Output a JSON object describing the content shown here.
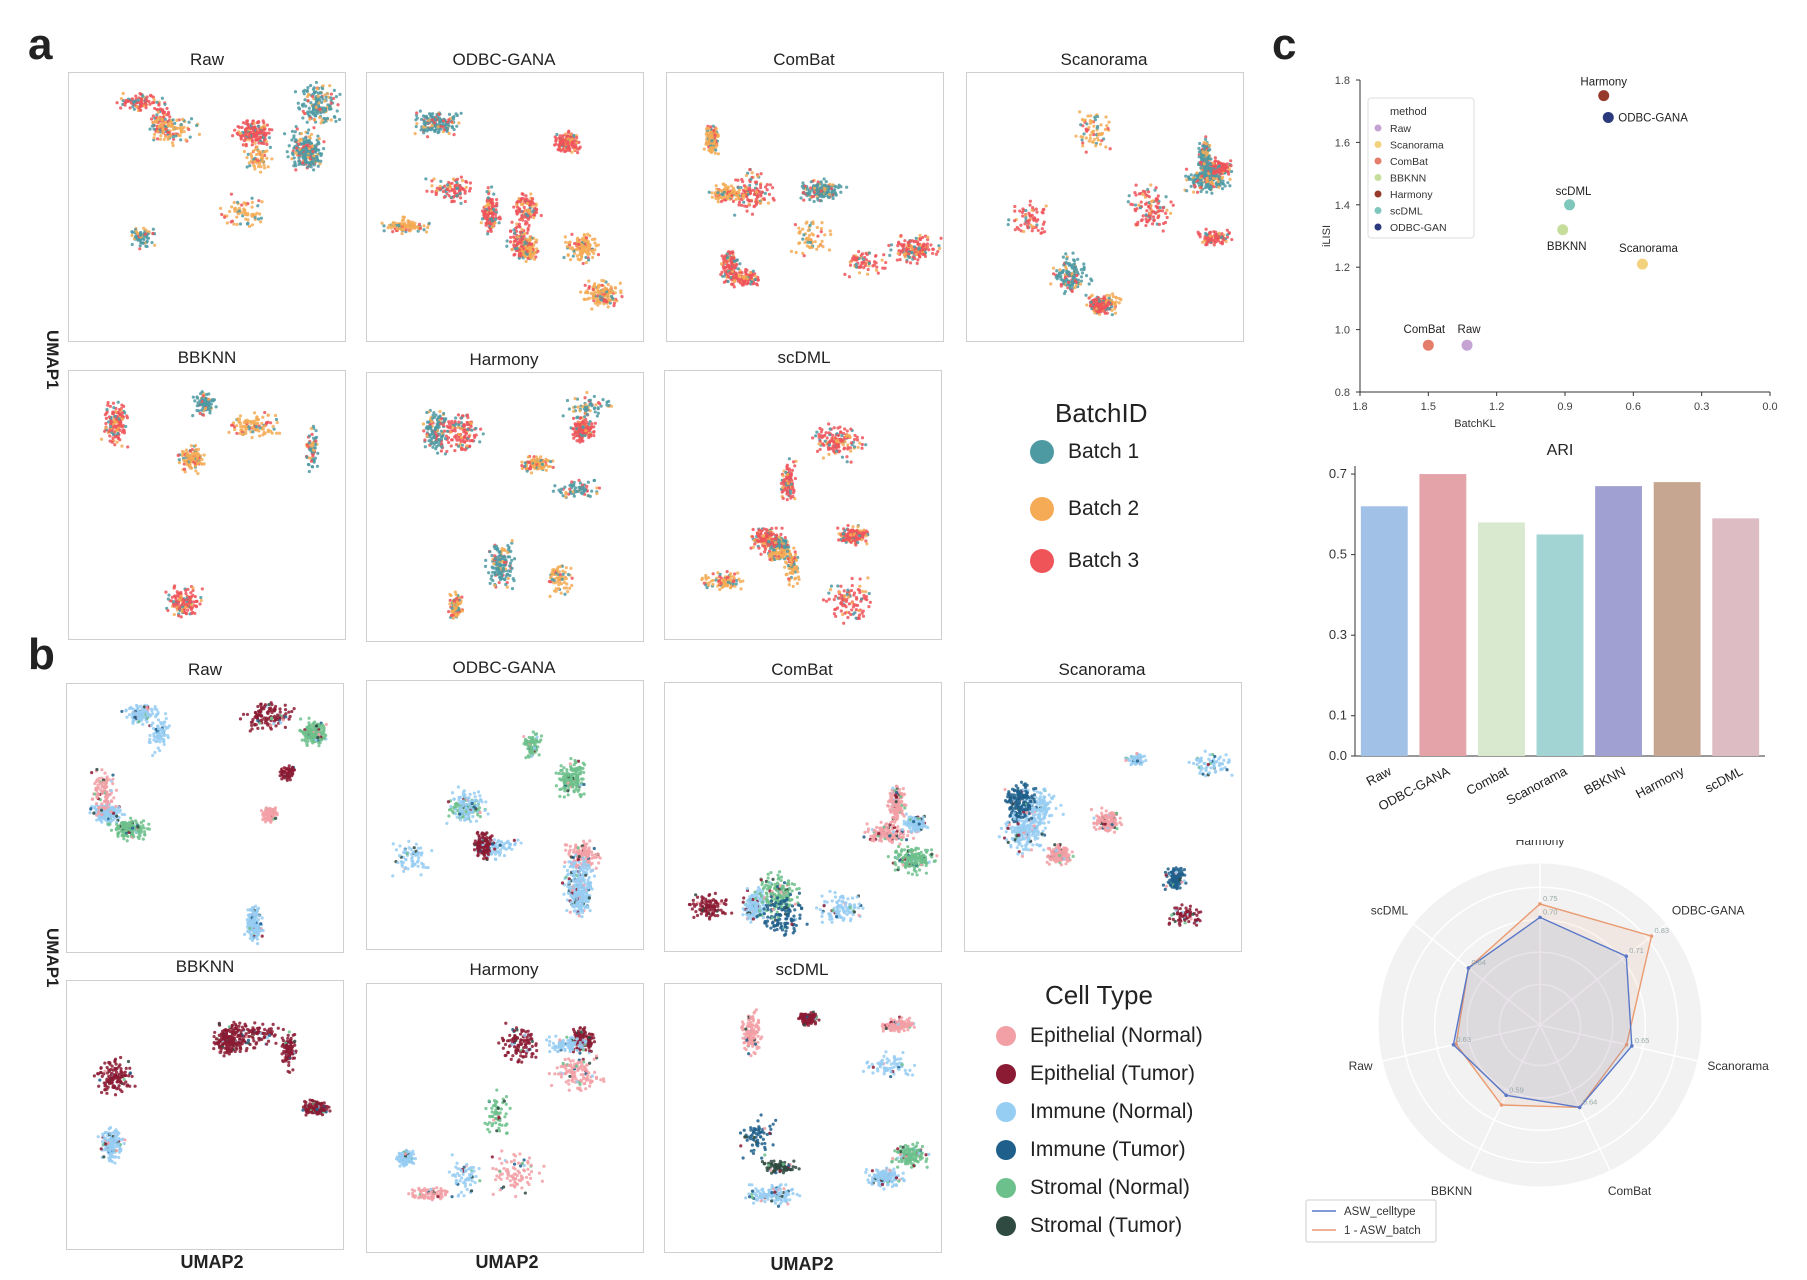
{
  "panels": {
    "a": "a",
    "b": "b",
    "c": "c"
  },
  "umap_methods": [
    "Raw",
    "ODBC-GANA",
    "ComBat",
    "Scanorama",
    "BBKNN",
    "Harmony",
    "scDML"
  ],
  "axis": {
    "umap1": "UMAP1",
    "umap2": "UMAP2"
  },
  "batch_legend": {
    "title": "BatchID",
    "items": [
      {
        "label": "Batch 1",
        "color": "#4e9aa3"
      },
      {
        "label": "Batch 2",
        "color": "#f5ab55"
      },
      {
        "label": "Batch 3",
        "color": "#ef5459"
      }
    ]
  },
  "celltype_legend": {
    "title": "Cell Type",
    "items": [
      {
        "label": "Epithelial (Normal)",
        "color": "#f2a0a6"
      },
      {
        "label": "Epithelial (Tumor)",
        "color": "#8b1a33"
      },
      {
        "label": "Immune (Normal)",
        "color": "#96cdf2"
      },
      {
        "label": "Immune (Tumor)",
        "color": "#1f5f8b"
      },
      {
        "label": "Stromal (Normal)",
        "color": "#6cc08b"
      },
      {
        "label": "Stromal (Tumor)",
        "color": "#2f4a40"
      }
    ]
  },
  "chart_data": [
    {
      "type": "scatter",
      "xlabel": "BatchKL",
      "ylabel": "iLISI",
      "xlim": [
        1.8,
        0.0
      ],
      "ylim": [
        0.8,
        1.8
      ],
      "xticks": [
        "1.8",
        "1.5",
        "1.2",
        "0.9",
        "0.6",
        "0.3",
        "0.0"
      ],
      "yticks": [
        "0.8",
        "1.0",
        "1.2",
        "1.4",
        "1.6",
        "1.8"
      ],
      "legend_title": "method",
      "legend_position": "top-left",
      "points": [
        {
          "name": "Raw",
          "x": 1.33,
          "y": 0.95,
          "color": "#c5a4d4"
        },
        {
          "name": "Scanorama",
          "x": 0.56,
          "y": 1.21,
          "color": "#f3d27e"
        },
        {
          "name": "ComBat",
          "x": 1.5,
          "y": 0.95,
          "color": "#e57d6b"
        },
        {
          "name": "BBKNN",
          "x": 0.91,
          "y": 1.32,
          "color": "#c7dd9c"
        },
        {
          "name": "Harmony",
          "x": 0.73,
          "y": 1.75,
          "color": "#963a2c"
        },
        {
          "name": "scDML",
          "x": 0.88,
          "y": 1.4,
          "color": "#7fc7bd"
        },
        {
          "name": "ODBC-GAN",
          "x": 0.71,
          "y": 1.68,
          "color": "#2a3a7c"
        }
      ],
      "annotations": [
        {
          "text": "Harmony",
          "ref": "Harmony"
        },
        {
          "text": "ODBC-GANA",
          "ref": "ODBC-GAN"
        },
        {
          "text": "scDML",
          "ref": "scDML"
        },
        {
          "text": "BBKNN",
          "ref": "BBKNN"
        },
        {
          "text": "Scanorama",
          "ref": "Scanorama"
        },
        {
          "text": "ComBat",
          "ref": "ComBat"
        },
        {
          "text": "Raw",
          "ref": "Raw"
        }
      ]
    },
    {
      "type": "bar",
      "title": "ARI",
      "categories": [
        "Raw",
        "ODBC-GANA",
        "Combat",
        "Scanorama",
        "BBKNN",
        "Harmony",
        "scDML"
      ],
      "values": [
        0.62,
        0.7,
        0.58,
        0.55,
        0.67,
        0.68,
        0.59
      ],
      "colors": [
        "#a2c1e6",
        "#e4a3a8",
        "#d9e9cf",
        "#a1d4d2",
        "#a0a0d2",
        "#c6a690",
        "#ddbcc4"
      ],
      "yticks": [
        "0.0",
        "0.1",
        "0.3",
        "0.5",
        "0.7"
      ],
      "ylim": [
        0.0,
        0.72
      ]
    },
    {
      "type": "radar",
      "axes": [
        "Harmony",
        "ODBC-GANA",
        "Scanorama",
        "ComBat",
        "BBKNN",
        "Raw",
        "scDML"
      ],
      "rmin": 0.3,
      "rmax": 0.85,
      "series": [
        {
          "name": "ASW_celltype",
          "color": "#5a78c8",
          "values": [
            0.7,
            0.71,
            0.65,
            0.64,
            0.59,
            0.63,
            0.64
          ]
        },
        {
          "name": "1 - ASW_batch",
          "color": "#ea9a70",
          "values": [
            0.75,
            0.83,
            0.63,
            0.64,
            0.63,
            0.62,
            0.64
          ]
        }
      ],
      "value_labels": [
        {
          "series": 0,
          "axis": 0,
          "text": "0.70"
        },
        {
          "series": 1,
          "axis": 0,
          "text": "0.75"
        },
        {
          "series": 0,
          "axis": 1,
          "text": "0.71"
        },
        {
          "series": 1,
          "axis": 1,
          "text": "0.83"
        },
        {
          "series": 0,
          "axis": 2,
          "text": "0.65"
        },
        {
          "series": 0,
          "axis": 3,
          "text": "0.64"
        },
        {
          "series": 0,
          "axis": 4,
          "text": "0.59"
        },
        {
          "series": 0,
          "axis": 5,
          "text": "0.63"
        },
        {
          "series": 0,
          "axis": 6,
          "text": "0.64"
        }
      ],
      "legend_position": "bottom-left"
    }
  ]
}
